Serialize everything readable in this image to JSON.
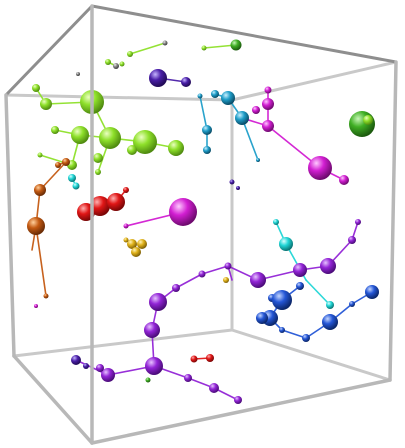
{
  "scene": {
    "background": "#ffffff",
    "box_color": "#bdbdbd",
    "colors": {
      "lime": "#8ee02a",
      "green": "#3fae24",
      "orange": "#c45a12",
      "red": "#e01616",
      "yellow": "#e0b21a",
      "cyan": "#21d6d6",
      "teal": "#1f9ec9",
      "magenta": "#d21ed2",
      "purple": "#9224d6",
      "indigo": "#4a1fa8",
      "blue": "#2456d6",
      "gray": "#8a8a8a"
    }
  }
}
